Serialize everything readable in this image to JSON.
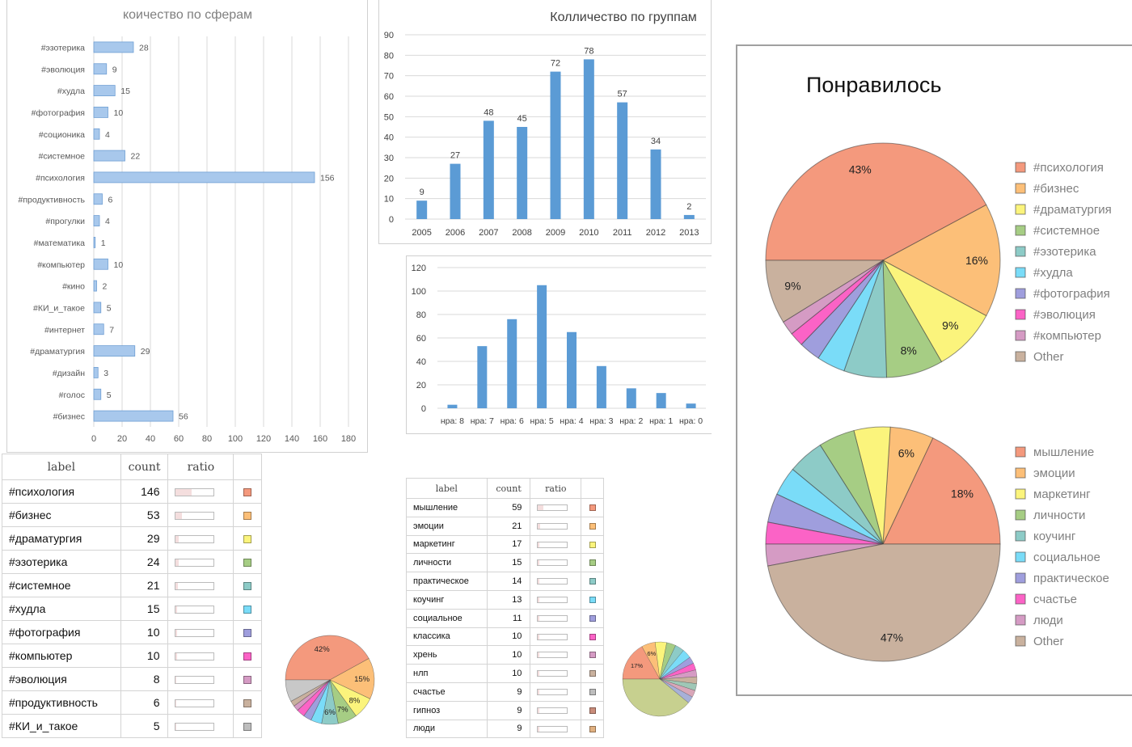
{
  "colors": {
    "bar_blue": "#5b9bd5",
    "bar_light": "#a8c8ec",
    "grid": "#d9d9d9",
    "palette": [
      "#f4997d",
      "#fcbf78",
      "#fbf47c",
      "#a6cd84",
      "#8dcbc7",
      "#7adcf8",
      "#9f9edd",
      "#fb63c6",
      "#d59bc4",
      "#c9b19e"
    ]
  },
  "chart_data": [
    {
      "id": "spheres",
      "type": "bar",
      "orientation": "horizontal",
      "title": "коичество по сферам",
      "categories": [
        "#эзотерика",
        "#эволюция",
        "#худла",
        "#фотография",
        "#соционика",
        "#системное",
        "#психология",
        "#продуктивность",
        "#прогулки",
        "#математика",
        "#компьютер",
        "#кино",
        "#КИ_и_такое",
        "#интернет",
        "#драматургия",
        "#дизайн",
        "#голос",
        "#бизнес"
      ],
      "values": [
        28,
        9,
        15,
        10,
        4,
        22,
        156,
        6,
        4,
        1,
        10,
        2,
        5,
        7,
        29,
        3,
        5,
        56
      ],
      "xlim": [
        0,
        180
      ],
      "xticks": [
        0,
        20,
        40,
        60,
        80,
        100,
        120,
        140,
        160,
        180
      ],
      "grid": true
    },
    {
      "id": "groups",
      "type": "bar",
      "title": "Колличество по группам",
      "categories": [
        "2005",
        "2006",
        "2007",
        "2008",
        "2009",
        "2010",
        "2011",
        "2012",
        "2013"
      ],
      "values": [
        9,
        27,
        48,
        45,
        72,
        78,
        57,
        34,
        2
      ],
      "ylim": [
        0,
        90
      ],
      "yticks": [
        0,
        10,
        20,
        30,
        40,
        50,
        60,
        70,
        80,
        90
      ],
      "grid": true
    },
    {
      "id": "likes",
      "type": "bar",
      "title": "",
      "categories": [
        "нра: 8",
        "нра: 7",
        "нра: 6",
        "нра: 5",
        "нра: 4",
        "нра: 3",
        "нра: 2",
        "нра: 1",
        "нра: 0"
      ],
      "values": [
        3,
        53,
        76,
        105,
        65,
        36,
        17,
        13,
        4
      ],
      "ylim": [
        0,
        120
      ],
      "yticks": [
        0,
        20,
        40,
        60,
        80,
        100,
        120
      ],
      "grid": true
    },
    {
      "id": "pie_liked_tags",
      "type": "pie",
      "title": "Понравилось",
      "labels": [
        "#психология",
        "#бизнес",
        "#драматургия",
        "#системное",
        "#эзотерика",
        "#худла",
        "#фотография",
        "#эволюция",
        "#компьютер",
        "Other"
      ],
      "values": [
        43,
        16,
        9,
        8,
        6,
        4,
        3,
        2,
        2,
        9
      ],
      "pct_labels": [
        "43%",
        "16%",
        "9%",
        "8%",
        "",
        "",
        "",
        "",
        "",
        "9%"
      ],
      "legend": "right"
    },
    {
      "id": "pie_liked_words",
      "type": "pie",
      "title": "",
      "labels": [
        "мышление",
        "эмоции",
        "маркетинг",
        "личности",
        "коучинг",
        "социальное",
        "практическое",
        "счастье",
        "люди",
        "Other"
      ],
      "values": [
        18,
        6,
        5,
        5,
        5,
        4,
        4,
        3,
        3,
        47
      ],
      "pct_labels": [
        "18%",
        "6%",
        "",
        "",
        "",
        "",
        "",
        "",
        "",
        "47%"
      ],
      "legend": "right"
    },
    {
      "id": "pie_small_tags",
      "type": "pie",
      "title": "",
      "labels": [
        "#психология",
        "#бизнес",
        "#драматургия",
        "#эзотерика",
        "#системное",
        "#худла",
        "#фотография",
        "#компьютер",
        "#эволюция",
        "#продуктивность",
        "#КИ_и_такое"
      ],
      "values": [
        42,
        15,
        8,
        7,
        6,
        4,
        3,
        3,
        2,
        2,
        8
      ],
      "pct_labels": [
        "42%",
        "15%",
        "8%",
        "7%",
        "6%",
        "",
        "",
        "",
        "",
        "",
        ""
      ]
    },
    {
      "id": "pie_small_words",
      "type": "pie",
      "title": "",
      "labels": [
        "мышление",
        "эмоции",
        "маркетинг",
        "личности",
        "практическое",
        "коучинг",
        "социальное",
        "классика",
        "хрень",
        "нлп",
        "счастье",
        "гипноз",
        "люди",
        "Other"
      ],
      "values": [
        17,
        6,
        5,
        4,
        4,
        4,
        3,
        3,
        3,
        3,
        3,
        3,
        3,
        39
      ],
      "pct_labels": [
        "17%",
        "6%",
        "",
        "",
        "",
        "",
        "",
        "",
        "",
        "",
        "",
        "",
        "",
        ""
      ]
    }
  ],
  "table_tags": {
    "headers": [
      "label",
      "count",
      "ratio"
    ],
    "rows": [
      {
        "label": "#психология",
        "count": "146",
        "ratio": 0.42,
        "color": "#f4997d"
      },
      {
        "label": "#бизнес",
        "count": "53",
        "ratio": 0.15,
        "color": "#fcbf78"
      },
      {
        "label": "#драматургия",
        "count": "29",
        "ratio": 0.08,
        "color": "#fbf47c"
      },
      {
        "label": "#эзотерика",
        "count": "24",
        "ratio": 0.07,
        "color": "#a6cd84"
      },
      {
        "label": "#системное",
        "count": "21",
        "ratio": 0.06,
        "color": "#8dcbc7"
      },
      {
        "label": "#худла",
        "count": "15",
        "ratio": 0.04,
        "color": "#7adcf8"
      },
      {
        "label": "#фотография",
        "count": "10",
        "ratio": 0.03,
        "color": "#9f9edd"
      },
      {
        "label": "#компьютер",
        "count": "10",
        "ratio": 0.03,
        "color": "#fb63c6"
      },
      {
        "label": "#эволюция",
        "count": "8",
        "ratio": 0.02,
        "color": "#d59bc4"
      },
      {
        "label": "#продуктивность",
        "count": "6",
        "ratio": 0.02,
        "color": "#c9b19e"
      },
      {
        "label": "#КИ_и_такое",
        "count": "5",
        "ratio": 0.01,
        "color": "#bdbdbd"
      }
    ]
  },
  "table_words": {
    "headers": [
      "label",
      "count",
      "ratio"
    ],
    "rows": [
      {
        "label": "мышление",
        "count": "59",
        "ratio": 0.17,
        "color": "#f4997d"
      },
      {
        "label": "эмоции",
        "count": "21",
        "ratio": 0.06,
        "color": "#fcbf78"
      },
      {
        "label": "маркетинг",
        "count": "17",
        "ratio": 0.05,
        "color": "#fbf47c"
      },
      {
        "label": "личности",
        "count": "15",
        "ratio": 0.04,
        "color": "#a6cd84"
      },
      {
        "label": "практическое",
        "count": "14",
        "ratio": 0.04,
        "color": "#8dcbc7"
      },
      {
        "label": "коучинг",
        "count": "13",
        "ratio": 0.04,
        "color": "#7adcf8"
      },
      {
        "label": "социальное",
        "count": "11",
        "ratio": 0.03,
        "color": "#9f9edd"
      },
      {
        "label": "классика",
        "count": "10",
        "ratio": 0.03,
        "color": "#fb63c6"
      },
      {
        "label": "хрень",
        "count": "10",
        "ratio": 0.03,
        "color": "#d59bc4"
      },
      {
        "label": "нлп",
        "count": "10",
        "ratio": 0.03,
        "color": "#c9b19e"
      },
      {
        "label": "счастье",
        "count": "9",
        "ratio": 0.03,
        "color": "#bdbdbd"
      },
      {
        "label": "гипноз",
        "count": "9",
        "ratio": 0.03,
        "color": "#c98c7a"
      },
      {
        "label": "люди",
        "count": "9",
        "ratio": 0.03,
        "color": "#e0b080"
      }
    ]
  }
}
